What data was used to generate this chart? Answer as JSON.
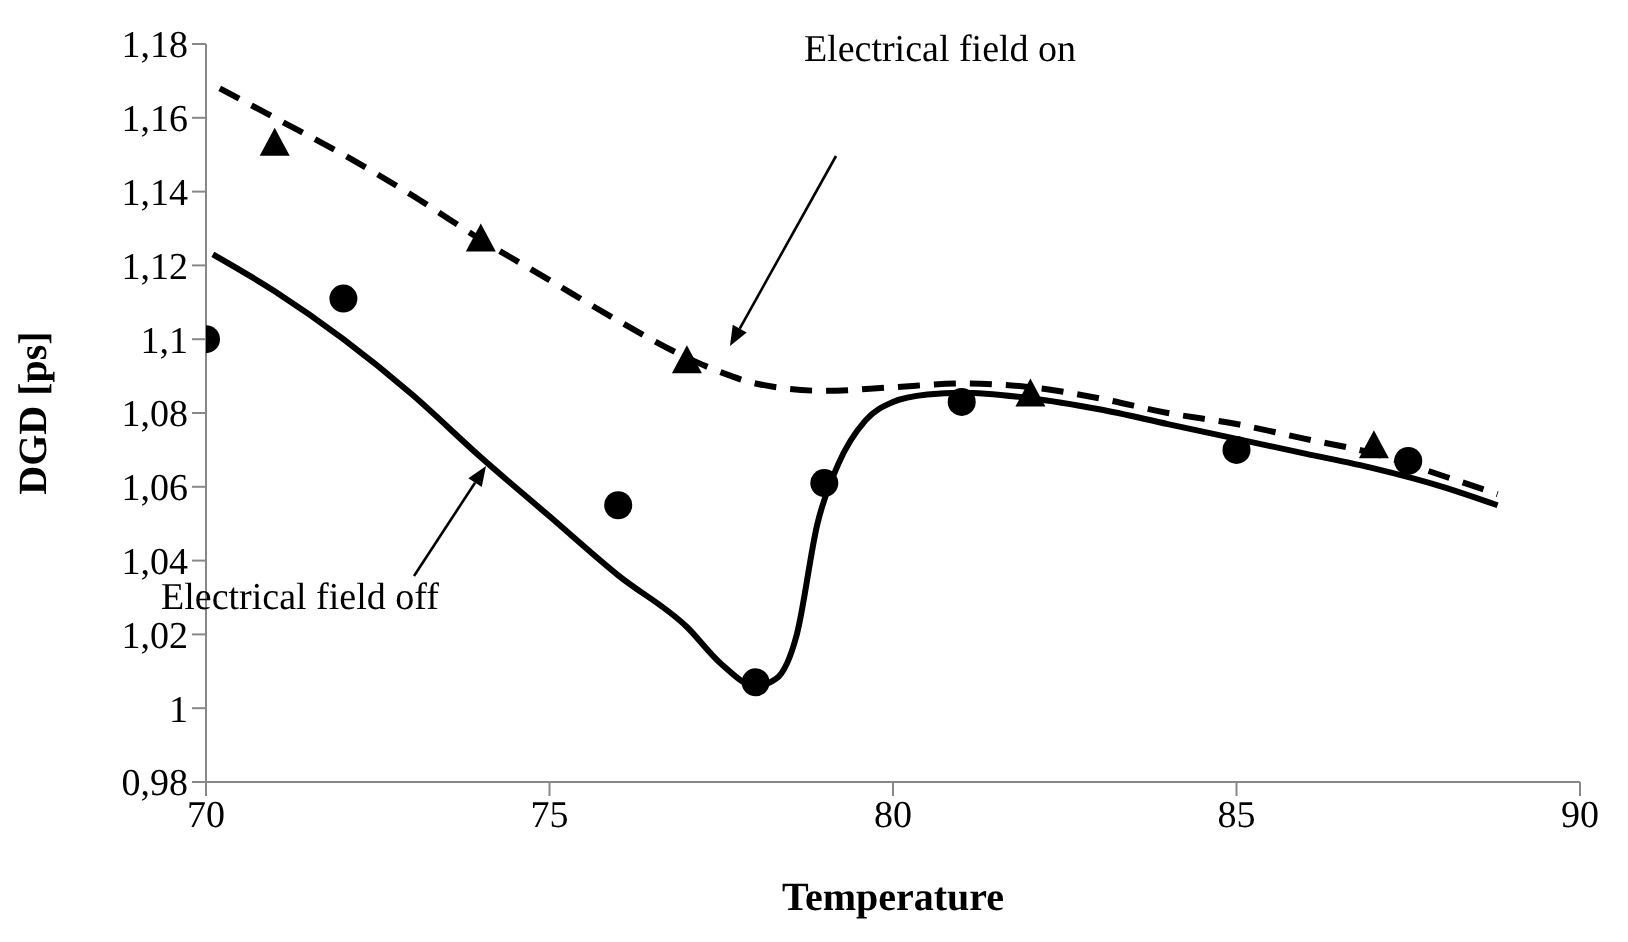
{
  "chart_data": {
    "type": "scatter",
    "xlabel": "Temperature",
    "ylabel": "DGD [ps]",
    "xlim": [
      70,
      90
    ],
    "xticks": [
      70,
      75,
      80,
      85,
      90
    ],
    "ylim": [
      0.98,
      1.18
    ],
    "yticks": [
      {
        "value": 0.98,
        "label": "0,98"
      },
      {
        "value": 1.0,
        "label": "1"
      },
      {
        "value": 1.02,
        "label": "1,02"
      },
      {
        "value": 1.04,
        "label": "1,04"
      },
      {
        "value": 1.06,
        "label": "1,06"
      },
      {
        "value": 1.08,
        "label": "1,08"
      },
      {
        "value": 1.1,
        "label": "1,1"
      },
      {
        "value": 1.12,
        "label": "1,12"
      },
      {
        "value": 1.14,
        "label": "1,14"
      },
      {
        "value": 1.16,
        "label": "1,16"
      },
      {
        "value": 1.18,
        "label": "1,18"
      }
    ],
    "grid": false,
    "legend": false,
    "series": [
      {
        "marker": "circle",
        "color": "#000000",
        "x": [
          70,
          72,
          76,
          78,
          79,
          81,
          85,
          87.5
        ],
        "values": [
          1.1,
          1.111,
          1.055,
          1.007,
          1.061,
          1.083,
          1.07,
          1.067
        ]
      },
      {
        "marker": "triangle",
        "color": "#000000",
        "x": [
          71,
          74,
          77,
          82,
          87
        ],
        "values": [
          1.153,
          1.127,
          1.094,
          1.085,
          1.071
        ]
      },
      {
        "type": "line",
        "marker": "none",
        "line_style": "solid",
        "color": "#000000",
        "x": [
          70.1,
          71,
          72,
          73,
          74,
          75,
          76,
          77,
          77.5,
          78,
          78.3,
          78.6,
          78.9,
          79.2,
          79.6,
          80,
          80.5,
          81,
          82,
          83,
          84,
          85,
          86,
          87,
          88,
          88.8
        ],
        "values": [
          1.123,
          1.113,
          1.1,
          1.085,
          1.068,
          1.052,
          1.036,
          1.022,
          1.012,
          1.006,
          1.008,
          1.02,
          1.05,
          1.066,
          1.078,
          1.083,
          1.085,
          1.0855,
          1.084,
          1.081,
          1.077,
          1.073,
          1.069,
          1.065,
          1.06,
          1.055
        ]
      },
      {
        "type": "line",
        "marker": "none",
        "line_style": "dashed",
        "color": "#000000",
        "x": [
          70.2,
          71,
          72,
          73,
          74,
          75,
          76,
          77,
          77.5,
          78,
          79,
          80,
          81,
          82,
          83,
          84,
          85,
          86,
          87,
          88,
          88.8
        ],
        "values": [
          1.168,
          1.16,
          1.15,
          1.139,
          1.127,
          1.116,
          1.105,
          1.095,
          1.091,
          1.088,
          1.086,
          1.087,
          1.088,
          1.087,
          1.084,
          1.08,
          1.077,
          1.073,
          1.069,
          1.063,
          1.058
        ]
      }
    ],
    "annotations": [
      "Electrical field on",
      "Electrical field off"
    ]
  }
}
